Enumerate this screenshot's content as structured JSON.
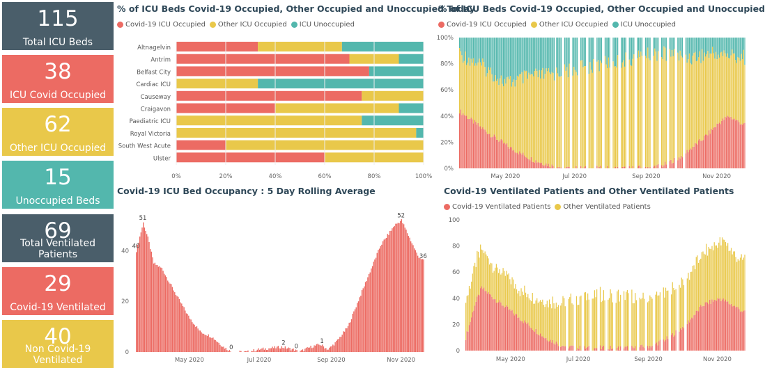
{
  "colors": {
    "covid": "#ec6b63",
    "other": "#e9c84a",
    "unoccupied": "#53b7ad",
    "dark": "#4a5e6a"
  },
  "kpis": [
    {
      "value": "115",
      "label": "Total ICU Beds",
      "color": "dark"
    },
    {
      "value": "38",
      "label": "ICU Covid Occupied",
      "color": "covid"
    },
    {
      "value": "62",
      "label": "Other ICU Occupied",
      "color": "other"
    },
    {
      "value": "15",
      "label": "Unoccupied Beds",
      "color": "unoccupied"
    },
    {
      "value": "69",
      "label": "Total Ventilated Patients",
      "color": "dark"
    },
    {
      "value": "29",
      "label": "Covid-19 Ventilated",
      "color": "covid"
    },
    {
      "value": "40",
      "label": "Non Covid-19 Ventilated",
      "color": "other"
    }
  ],
  "panels": {
    "today": {
      "title": "% of ICU Beds Covid-19 Occupied, Other Occupied and Unoccupied Today",
      "legend": [
        "Covid-19 ICU Occupied",
        "Other ICU Occupied",
        "ICU Unoccupied"
      ]
    },
    "over_time": {
      "title": "% of ICU Beds Covid-19 Occupied, Other Occupied and Unoccupied",
      "legend": [
        "Covid-19 ICU Occupied",
        "Other ICU Occupied",
        "ICU Unoccupied"
      ]
    },
    "rolling": {
      "title": "Covid-19 ICU Bed Occupancy : 5 Day Rolling Average"
    },
    "ventilated": {
      "title": "Covid-19 Ventilated Patients and Other Ventilated Patients",
      "legend": [
        "Covid-19 Ventilated Patients",
        "Other Ventilated Patients"
      ]
    }
  },
  "chart_data": [
    {
      "type": "bar",
      "orientation": "horizontal-stacked-100",
      "title": "% of ICU Beds Covid-19 Occupied, Other Occupied and Unoccupied Today",
      "categories": [
        "Altnagelvin",
        "Antrim",
        "Belfast City",
        "Cardiac ICU",
        "Causeway",
        "Craigavon",
        "Paediatric ICU",
        "Royal Victoria",
        "South West Acute",
        "Ulster"
      ],
      "series": [
        {
          "name": "Covid-19 ICU Occupied",
          "values": [
            33,
            70,
            78,
            0,
            75,
            40,
            0,
            0,
            20,
            60
          ]
        },
        {
          "name": "Other ICU Occupied",
          "values": [
            34,
            20,
            0,
            33,
            25,
            50,
            75,
            97,
            80,
            40
          ]
        },
        {
          "name": "ICU Unoccupied",
          "values": [
            33,
            10,
            22,
            67,
            0,
            10,
            25,
            3,
            0,
            0
          ]
        }
      ],
      "xticks": [
        "0%",
        "20%",
        "40%",
        "60%",
        "80%",
        "100%"
      ],
      "xlim": [
        0,
        100
      ],
      "legend": "top-left"
    },
    {
      "type": "bar",
      "orientation": "vertical-stacked-100",
      "title": "% of ICU Beds Covid-19 Occupied, Other Occupied and Unoccupied",
      "xticks": [
        "May 2020",
        "Jul 2020",
        "Sep 2020",
        "Nov 2020"
      ],
      "yticks": [
        "0%",
        "20%",
        "40%",
        "60%",
        "80%",
        "100%"
      ],
      "ylim": [
        0,
        100
      ],
      "covid_pct_keypoints": [
        [
          0,
          44
        ],
        [
          10,
          37
        ],
        [
          25,
          27
        ],
        [
          45,
          15
        ],
        [
          65,
          6
        ],
        [
          80,
          2
        ],
        [
          95,
          0
        ],
        [
          150,
          0
        ],
        [
          175,
          2
        ],
        [
          190,
          8
        ],
        [
          210,
          22
        ],
        [
          225,
          35
        ],
        [
          233,
          40
        ],
        [
          247,
          33
        ]
      ],
      "unoccupied_pct_keypoints": [
        [
          0,
          12
        ],
        [
          20,
          22
        ],
        [
          40,
          35
        ],
        [
          60,
          30
        ],
        [
          80,
          28
        ],
        [
          110,
          22
        ],
        [
          140,
          18
        ],
        [
          170,
          12
        ],
        [
          200,
          15
        ],
        [
          220,
          12
        ],
        [
          247,
          15
        ]
      ],
      "missing_days_note": false,
      "legend": "top-left"
    },
    {
      "type": "bar",
      "title": "Covid-19 ICU Bed Occupancy : 5 Day Rolling Average",
      "xticks": [
        "May 2020",
        "Jul 2020",
        "Sep 2020",
        "Nov 2020"
      ],
      "yticks": [
        "0",
        "20",
        "40"
      ],
      "ylim": [
        0,
        56
      ],
      "keypoints": [
        [
          0,
          40
        ],
        [
          6,
          51
        ],
        [
          10,
          45
        ],
        [
          15,
          35
        ],
        [
          22,
          33
        ],
        [
          35,
          22
        ],
        [
          45,
          14
        ],
        [
          55,
          8
        ],
        [
          65,
          6
        ],
        [
          75,
          2
        ],
        [
          82,
          0
        ],
        [
          95,
          0
        ],
        [
          105,
          1
        ],
        [
          125,
          2
        ],
        [
          135,
          1
        ],
        [
          140,
          0
        ],
        [
          150,
          2
        ],
        [
          158,
          3
        ],
        [
          165,
          1
        ],
        [
          172,
          4
        ],
        [
          182,
          10
        ],
        [
          195,
          25
        ],
        [
          210,
          42
        ],
        [
          222,
          50
        ],
        [
          228,
          52
        ],
        [
          235,
          45
        ],
        [
          242,
          38
        ],
        [
          247,
          36
        ]
      ],
      "annotations": [
        {
          "day": 0,
          "label": "40"
        },
        {
          "day": 6,
          "label": "51"
        },
        {
          "day": 82,
          "label": "0"
        },
        {
          "day": 127,
          "label": "2"
        },
        {
          "day": 138,
          "label": "0"
        },
        {
          "day": 160,
          "label": "1"
        },
        {
          "day": 228,
          "label": "52"
        },
        {
          "day": 247,
          "label": "36"
        }
      ]
    },
    {
      "type": "bar",
      "orientation": "vertical-stacked",
      "title": "Covid-19 Ventilated Patients and Other Ventilated Patients",
      "xticks": [
        "May 2020",
        "Jul 2020",
        "Sep 2020",
        "Nov 2020"
      ],
      "yticks": [
        "0",
        "20",
        "40",
        "60",
        "80",
        "100"
      ],
      "ylim": [
        0,
        100
      ],
      "covid_keypoints": [
        [
          0,
          10
        ],
        [
          8,
          35
        ],
        [
          14,
          48
        ],
        [
          25,
          40
        ],
        [
          40,
          30
        ],
        [
          55,
          20
        ],
        [
          70,
          10
        ],
        [
          85,
          4
        ],
        [
          100,
          2
        ],
        [
          150,
          2
        ],
        [
          165,
          4
        ],
        [
          180,
          10
        ],
        [
          195,
          20
        ],
        [
          210,
          35
        ],
        [
          225,
          40
        ],
        [
          240,
          33
        ],
        [
          247,
          29
        ]
      ],
      "other_keypoints": [
        [
          0,
          28
        ],
        [
          10,
          30
        ],
        [
          25,
          25
        ],
        [
          50,
          22
        ],
        [
          80,
          32
        ],
        [
          110,
          40
        ],
        [
          140,
          40
        ],
        [
          170,
          35
        ],
        [
          195,
          35
        ],
        [
          215,
          40
        ],
        [
          230,
          45
        ],
        [
          240,
          38
        ],
        [
          247,
          40
        ]
      ],
      "legend": "top-left"
    }
  ]
}
